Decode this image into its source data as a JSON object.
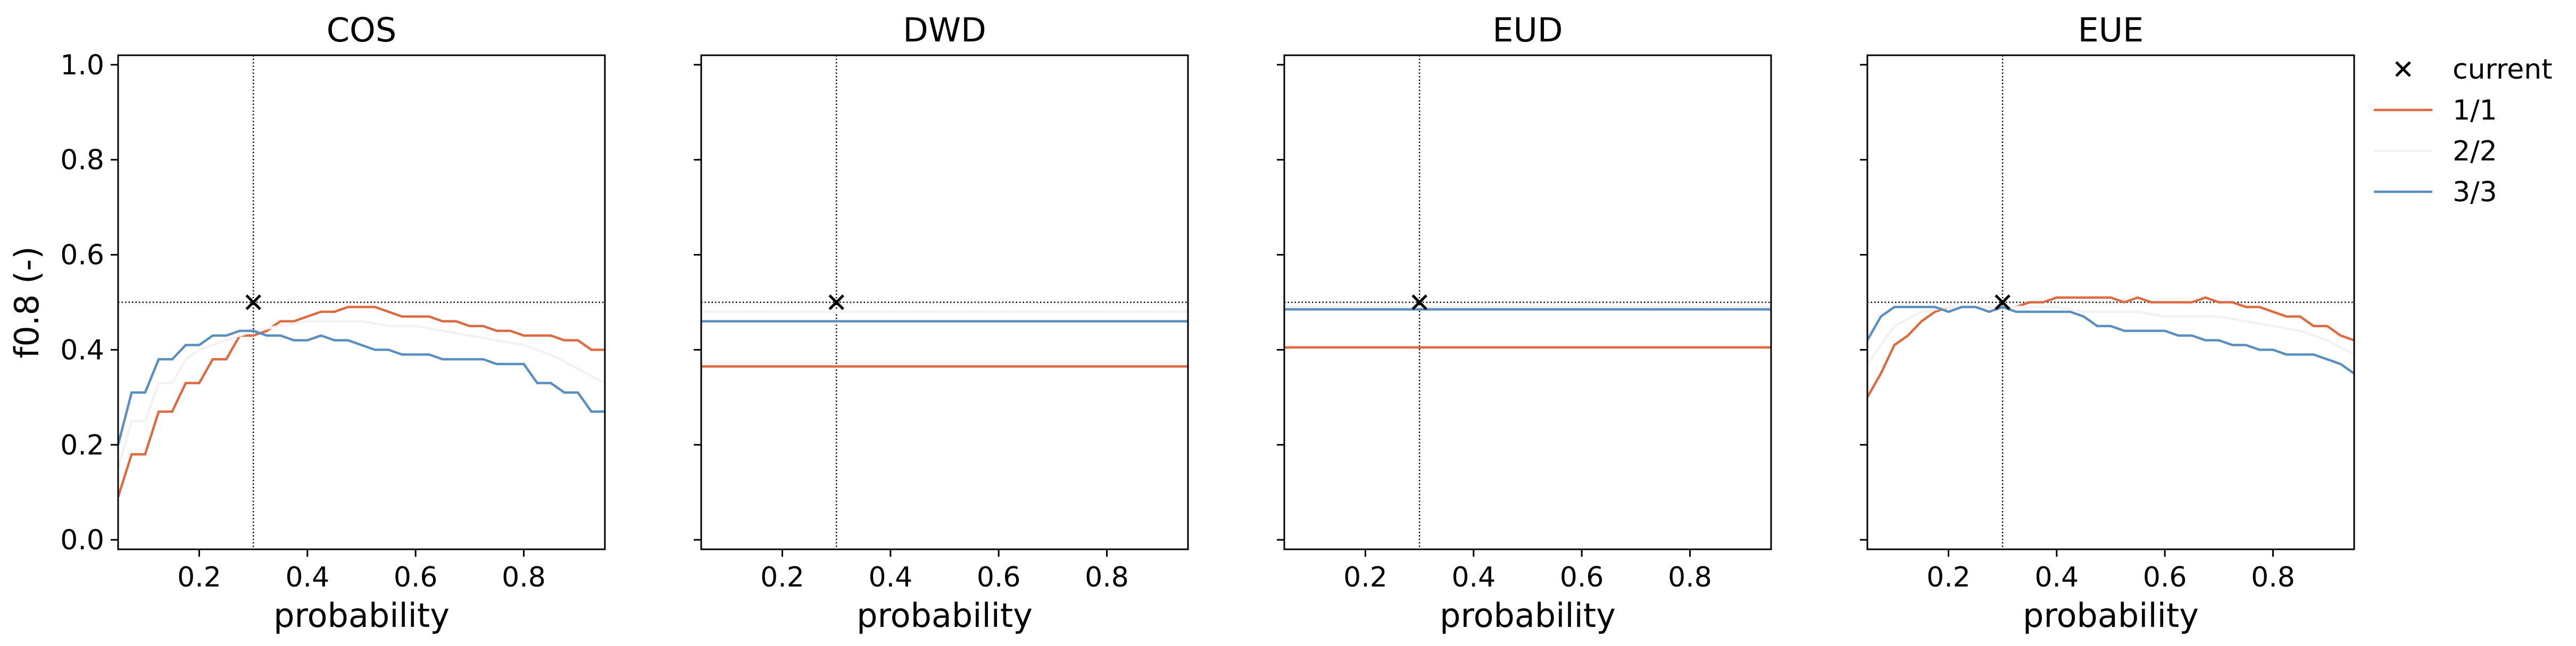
{
  "chart_data": {
    "type": "line",
    "ylabel": "f0.8 (-)",
    "xlabel": "probability",
    "xlim": [
      0.05,
      0.95
    ],
    "ylim": [
      -0.02,
      1.02
    ],
    "xticks": [
      0.2,
      0.4,
      0.6,
      0.8
    ],
    "yticks": [
      0.0,
      0.2,
      0.4,
      0.6,
      0.8,
      1.0
    ],
    "grid": false,
    "legend_position": "outside-right",
    "reference_lines": {
      "x": 0.3,
      "y": 0.5,
      "style": "dotted"
    },
    "legend": [
      {
        "label": "current",
        "kind": "marker",
        "color": "#000000"
      },
      {
        "label": "1/1",
        "kind": "line",
        "color": "#dd6a40"
      },
      {
        "label": "2/2",
        "kind": "line",
        "color": "#f2f2f2"
      },
      {
        "label": "3/3",
        "kind": "line",
        "color": "#5a8fc0"
      }
    ],
    "panels": [
      {
        "title": "COS",
        "current": {
          "x": 0.3,
          "y": 0.5
        },
        "series": [
          {
            "name": "1/1",
            "color": "#dd6a40",
            "x": [
              0.05,
              0.075,
              0.1,
              0.125,
              0.15,
              0.175,
              0.2,
              0.225,
              0.25,
              0.275,
              0.3,
              0.325,
              0.35,
              0.375,
              0.4,
              0.425,
              0.45,
              0.475,
              0.5,
              0.525,
              0.55,
              0.575,
              0.6,
              0.625,
              0.65,
              0.675,
              0.7,
              0.725,
              0.75,
              0.775,
              0.8,
              0.825,
              0.85,
              0.875,
              0.9,
              0.925,
              0.95
            ],
            "y": [
              0.09,
              0.18,
              0.18,
              0.27,
              0.27,
              0.33,
              0.33,
              0.38,
              0.38,
              0.43,
              0.43,
              0.44,
              0.46,
              0.46,
              0.47,
              0.48,
              0.48,
              0.49,
              0.49,
              0.49,
              0.48,
              0.47,
              0.47,
              0.47,
              0.46,
              0.46,
              0.45,
              0.45,
              0.44,
              0.44,
              0.43,
              0.43,
              0.43,
              0.42,
              0.42,
              0.4,
              0.4
            ]
          },
          {
            "name": "2/2",
            "color": "#f2f2f2",
            "x": [
              0.05,
              0.075,
              0.1,
              0.125,
              0.15,
              0.175,
              0.2,
              0.225,
              0.25,
              0.275,
              0.3,
              0.35,
              0.4,
              0.45,
              0.5,
              0.55,
              0.6,
              0.65,
              0.7,
              0.75,
              0.8,
              0.85,
              0.9,
              0.95
            ],
            "y": [
              0.15,
              0.25,
              0.25,
              0.33,
              0.33,
              0.38,
              0.4,
              0.41,
              0.42,
              0.43,
              0.44,
              0.45,
              0.46,
              0.46,
              0.46,
              0.45,
              0.45,
              0.44,
              0.43,
              0.42,
              0.41,
              0.39,
              0.36,
              0.33
            ]
          },
          {
            "name": "3/3",
            "color": "#5a8fc0",
            "x": [
              0.05,
              0.075,
              0.1,
              0.125,
              0.15,
              0.175,
              0.2,
              0.225,
              0.25,
              0.275,
              0.3,
              0.325,
              0.35,
              0.375,
              0.4,
              0.425,
              0.45,
              0.475,
              0.5,
              0.525,
              0.55,
              0.575,
              0.6,
              0.625,
              0.65,
              0.675,
              0.7,
              0.725,
              0.75,
              0.775,
              0.8,
              0.825,
              0.85,
              0.875,
              0.9,
              0.925,
              0.95
            ],
            "y": [
              0.2,
              0.31,
              0.31,
              0.38,
              0.38,
              0.41,
              0.41,
              0.43,
              0.43,
              0.44,
              0.44,
              0.43,
              0.43,
              0.42,
              0.42,
              0.43,
              0.42,
              0.42,
              0.41,
              0.4,
              0.4,
              0.39,
              0.39,
              0.39,
              0.38,
              0.38,
              0.38,
              0.38,
              0.37,
              0.37,
              0.37,
              0.33,
              0.33,
              0.31,
              0.31,
              0.27,
              0.27
            ]
          }
        ]
      },
      {
        "title": "DWD",
        "current": {
          "x": 0.3,
          "y": 0.5
        },
        "series": [
          {
            "name": "1/1",
            "color": "#dd6a40",
            "x": [
              0.05,
              0.95
            ],
            "y": [
              0.365,
              0.365
            ]
          },
          {
            "name": "2/2",
            "color": "#f2f2f2",
            "x": [
              0.05,
              0.95
            ],
            "y": [
              0.48,
              0.48
            ]
          },
          {
            "name": "3/3",
            "color": "#5a8fc0",
            "x": [
              0.05,
              0.95
            ],
            "y": [
              0.46,
              0.46
            ]
          }
        ]
      },
      {
        "title": "EUD",
        "current": {
          "x": 0.3,
          "y": 0.5
        },
        "series": [
          {
            "name": "1/1",
            "color": "#dd6a40",
            "x": [
              0.05,
              0.95
            ],
            "y": [
              0.405,
              0.405
            ]
          },
          {
            "name": "2/2",
            "color": "#f2f2f2",
            "x": [
              0.05,
              0.95
            ],
            "y": [
              0.49,
              0.49
            ]
          },
          {
            "name": "3/3",
            "color": "#5a8fc0",
            "x": [
              0.05,
              0.95
            ],
            "y": [
              0.485,
              0.485
            ]
          }
        ]
      },
      {
        "title": "EUE",
        "current": {
          "x": 0.3,
          "y": 0.5
        },
        "series": [
          {
            "name": "1/1",
            "color": "#dd6a40",
            "x": [
              0.05,
              0.075,
              0.1,
              0.125,
              0.15,
              0.175,
              0.2,
              0.225,
              0.25,
              0.275,
              0.3,
              0.325,
              0.35,
              0.375,
              0.4,
              0.425,
              0.45,
              0.475,
              0.5,
              0.525,
              0.55,
              0.575,
              0.6,
              0.625,
              0.65,
              0.675,
              0.7,
              0.725,
              0.75,
              0.775,
              0.8,
              0.825,
              0.85,
              0.875,
              0.9,
              0.925,
              0.95
            ],
            "y": [
              0.3,
              0.35,
              0.41,
              0.43,
              0.46,
              0.48,
              0.49,
              0.49,
              0.49,
              0.49,
              0.49,
              0.49,
              0.5,
              0.5,
              0.51,
              0.51,
              0.51,
              0.51,
              0.51,
              0.5,
              0.51,
              0.5,
              0.5,
              0.5,
              0.5,
              0.51,
              0.5,
              0.5,
              0.49,
              0.49,
              0.48,
              0.47,
              0.47,
              0.45,
              0.45,
              0.43,
              0.42
            ]
          },
          {
            "name": "2/2",
            "color": "#f2f2f2",
            "x": [
              0.05,
              0.1,
              0.15,
              0.2,
              0.25,
              0.3,
              0.35,
              0.4,
              0.45,
              0.5,
              0.55,
              0.6,
              0.65,
              0.7,
              0.75,
              0.8,
              0.85,
              0.9,
              0.95
            ],
            "y": [
              0.37,
              0.45,
              0.48,
              0.49,
              0.49,
              0.49,
              0.49,
              0.49,
              0.48,
              0.48,
              0.48,
              0.47,
              0.47,
              0.47,
              0.46,
              0.45,
              0.44,
              0.42,
              0.39
            ]
          },
          {
            "name": "3/3",
            "color": "#5a8fc0",
            "x": [
              0.05,
              0.075,
              0.1,
              0.125,
              0.15,
              0.175,
              0.2,
              0.225,
              0.25,
              0.275,
              0.3,
              0.325,
              0.35,
              0.375,
              0.4,
              0.425,
              0.45,
              0.475,
              0.5,
              0.525,
              0.55,
              0.575,
              0.6,
              0.625,
              0.65,
              0.675,
              0.7,
              0.725,
              0.75,
              0.775,
              0.8,
              0.825,
              0.85,
              0.875,
              0.9,
              0.925,
              0.95
            ],
            "y": [
              0.42,
              0.47,
              0.49,
              0.49,
              0.49,
              0.49,
              0.48,
              0.49,
              0.49,
              0.48,
              0.49,
              0.48,
              0.48,
              0.48,
              0.48,
              0.48,
              0.47,
              0.45,
              0.45,
              0.44,
              0.44,
              0.44,
              0.44,
              0.43,
              0.43,
              0.42,
              0.42,
              0.41,
              0.41,
              0.4,
              0.4,
              0.39,
              0.39,
              0.39,
              0.38,
              0.37,
              0.35
            ]
          }
        ]
      }
    ]
  }
}
